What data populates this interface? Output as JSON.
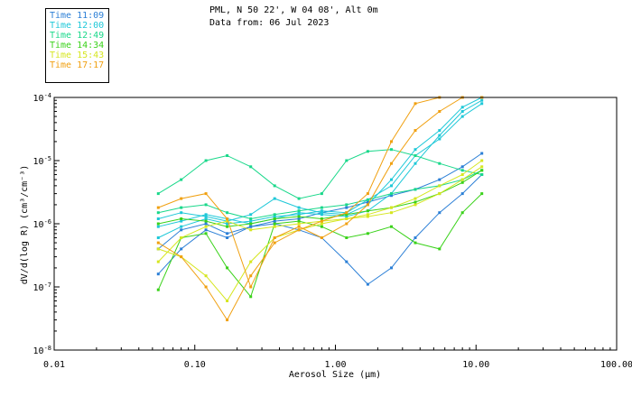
{
  "header": {
    "location": "PML, N 50 22', W 04 08', Alt 0m",
    "date": "Data from: 06 Jul 2023"
  },
  "legend": [
    {
      "label": "Time 11:09",
      "color": "#2b7fd6"
    },
    {
      "label": "Time 12:00",
      "color": "#1ec8d8"
    },
    {
      "label": "Time 12:49",
      "color": "#19d88a"
    },
    {
      "label": "Time 14:34",
      "color": "#3ad21a"
    },
    {
      "label": "Time 15:43",
      "color": "#d6e620"
    },
    {
      "label": "Time 17:17",
      "color": "#f0a010"
    }
  ],
  "chart_data": {
    "type": "line",
    "xlabel": "Aerosol Size (μm)",
    "ylabel": "dV/d(log R) (cm³/cm⁻³)",
    "x_scale": "log",
    "y_scale": "log",
    "xlim": [
      0.01,
      100
    ],
    "ylim": [
      1e-08,
      0.0001
    ],
    "x_ticks": [
      {
        "value": 0.01,
        "label": "0.01"
      },
      {
        "value": 0.1,
        "label": "0.10"
      },
      {
        "value": 1,
        "label": "1.00"
      },
      {
        "value": 10,
        "label": "10.00"
      },
      {
        "value": 100,
        "label": "100.00"
      }
    ],
    "y_ticks": [
      {
        "value": 1e-08,
        "base": "10",
        "exp": "-8"
      },
      {
        "value": 1e-07,
        "base": "10",
        "exp": "-7"
      },
      {
        "value": 1e-06,
        "base": "10",
        "exp": "-6"
      },
      {
        "value": 1e-05,
        "base": "10",
        "exp": "-5"
      },
      {
        "value": 0.0001,
        "base": "10",
        "exp": "-4"
      }
    ],
    "grid": false,
    "x": [
      0.055,
      0.08,
      0.12,
      0.17,
      0.25,
      0.37,
      0.55,
      0.8,
      1.2,
      1.7,
      2.5,
      3.7,
      5.5,
      8.0,
      11.0
    ],
    "series": [
      {
        "color": "#2b7fd6",
        "values": [
          1.6e-07,
          4e-07,
          8e-07,
          6e-07,
          9e-07,
          1e-06,
          8e-07,
          6e-07,
          2.5e-07,
          1.1e-07,
          2e-07,
          6e-07,
          1.5e-06,
          3e-06,
          6e-06
        ]
      },
      {
        "color": "#2b7fd6",
        "values": [
          4e-07,
          8e-07,
          1e-06,
          7e-07,
          9e-07,
          1.1e-06,
          1.2e-06,
          1.5e-06,
          1.8e-06,
          2.2e-06,
          2.8e-06,
          3.5e-06,
          5e-06,
          8e-06,
          1.3e-05
        ]
      },
      {
        "color": "#1ec8d8",
        "values": [
          9e-07,
          1.1e-06,
          1.4e-06,
          1.2e-06,
          1e-06,
          1.2e-06,
          1.5e-06,
          1.4e-06,
          1.3e-06,
          1.6e-06,
          3e-06,
          9e-06,
          2.5e-05,
          6e-05,
          9e-05
        ]
      },
      {
        "color": "#1ec8d8",
        "values": [
          1.2e-06,
          1.5e-06,
          1.3e-06,
          1.1e-06,
          1.4e-06,
          2.5e-06,
          1.8e-06,
          1.5e-06,
          1.4e-06,
          2e-06,
          5e-06,
          1.5e-05,
          3e-05,
          7e-05,
          0.0001
        ]
      },
      {
        "color": "#1ec8d8",
        "values": [
          6e-07,
          9e-07,
          1.2e-06,
          1e-06,
          1.1e-06,
          1.3e-06,
          1.4e-06,
          1.6e-06,
          1.5e-06,
          2.4e-06,
          4e-06,
          1.2e-05,
          2.2e-05,
          5e-05,
          8e-05
        ]
      },
      {
        "color": "#19d88a",
        "values": [
          3e-06,
          5e-06,
          1e-05,
          1.2e-05,
          8e-06,
          4e-06,
          2.5e-06,
          3e-06,
          1e-05,
          1.4e-05,
          1.5e-05,
          1.2e-05,
          9e-06,
          7e-06,
          6e-06
        ]
      },
      {
        "color": "#19d88a",
        "values": [
          1.5e-06,
          1.8e-06,
          2e-06,
          1.5e-06,
          1.2e-06,
          1.4e-06,
          1.6e-06,
          1.8e-06,
          2e-06,
          2.4e-06,
          3e-06,
          3.5e-06,
          4e-06,
          5e-06,
          7e-06
        ]
      },
      {
        "color": "#3ad21a",
        "values": [
          9e-08,
          6e-07,
          7e-07,
          2e-07,
          7e-08,
          1e-06,
          1.1e-06,
          9e-07,
          6e-07,
          7e-07,
          9e-07,
          5e-07,
          4e-07,
          1.5e-06,
          3e-06
        ]
      },
      {
        "color": "#3ad21a",
        "values": [
          1e-06,
          1.2e-06,
          1.1e-06,
          9e-07,
          1e-06,
          1.2e-06,
          1.3e-06,
          1.2e-06,
          1.4e-06,
          1.6e-06,
          1.8e-06,
          2.2e-06,
          3e-06,
          4.5e-06,
          7e-06
        ]
      },
      {
        "color": "#d6e620",
        "values": [
          2.5e-07,
          6e-07,
          9e-07,
          1.1e-06,
          8e-07,
          9e-07,
          1e-06,
          1.1e-06,
          1.2e-06,
          1.3e-06,
          1.5e-06,
          2e-06,
          3e-06,
          5e-06,
          8e-06
        ]
      },
      {
        "color": "#d6e620",
        "values": [
          4e-07,
          3e-07,
          1.5e-07,
          6e-08,
          2.5e-07,
          6e-07,
          8e-07,
          1e-06,
          1.2e-06,
          1.4e-06,
          1.8e-06,
          2.5e-06,
          4e-06,
          6e-06,
          1e-05
        ]
      },
      {
        "color": "#f0a010",
        "values": [
          1.8e-06,
          2.5e-06,
          3e-06,
          1.2e-06,
          1e-07,
          6e-07,
          9e-07,
          6e-07,
          1e-06,
          2e-06,
          9e-06,
          3e-05,
          6e-05,
          0.0001,
          0.0001
        ]
      },
      {
        "color": "#f0a010",
        "values": [
          5e-07,
          3e-07,
          1e-07,
          3e-08,
          1.5e-07,
          5e-07,
          8e-07,
          1.1e-06,
          1.5e-06,
          3e-06,
          2e-05,
          8e-05,
          0.0001,
          0.0001,
          0.0001
        ]
      }
    ]
  }
}
